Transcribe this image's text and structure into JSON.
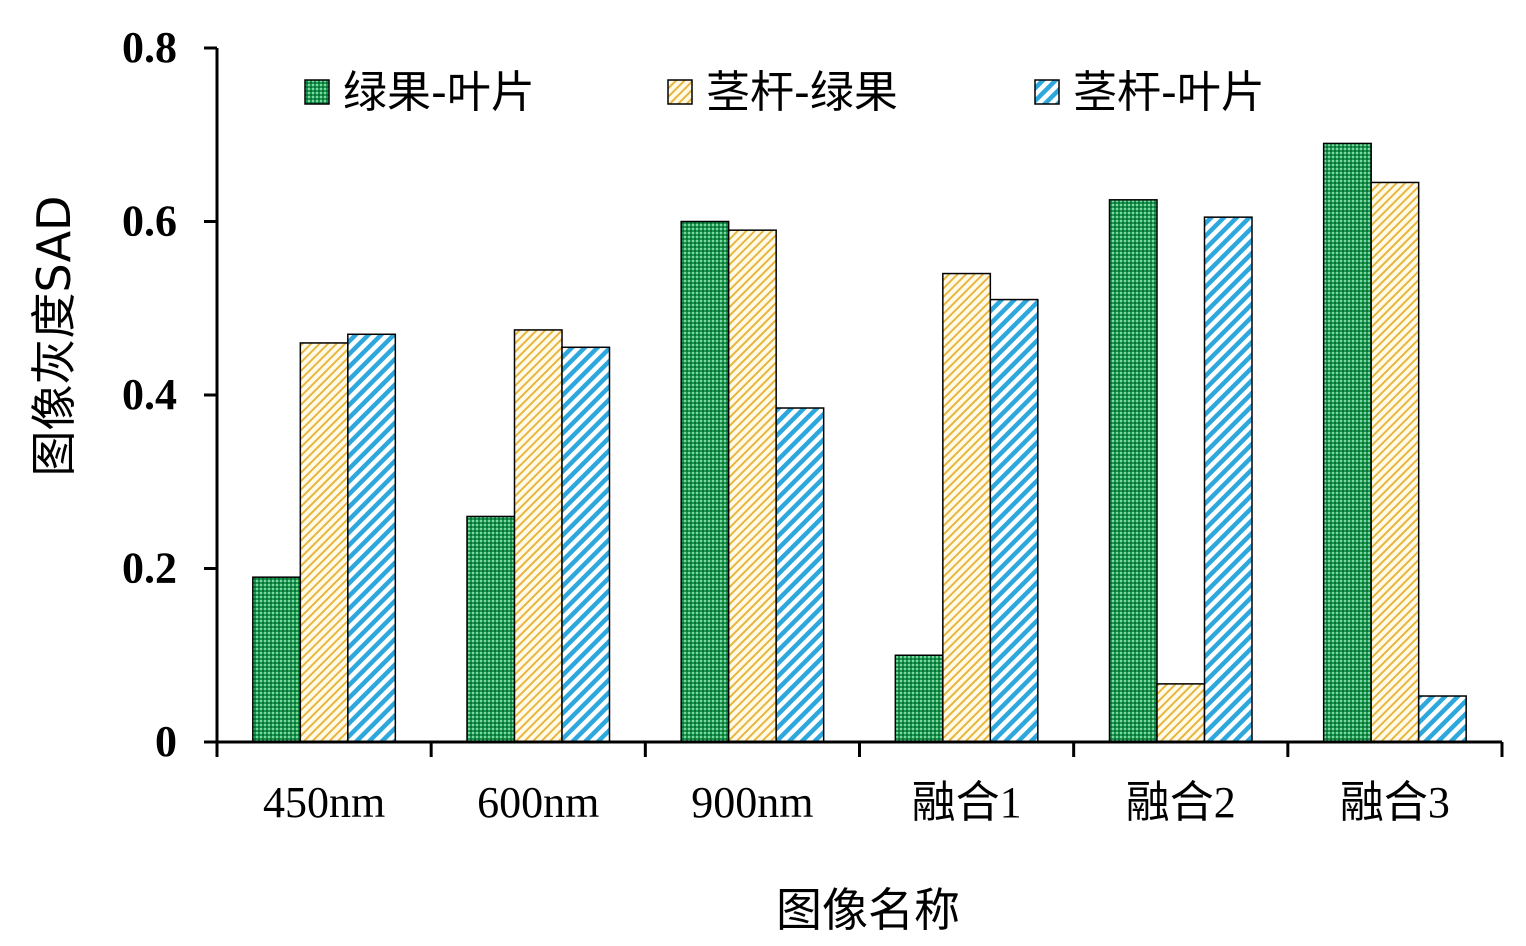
{
  "chart_data": {
    "type": "bar",
    "title": "",
    "xlabel": "图像名称",
    "ylabel": "图像灰度SAD",
    "ylim": [
      0,
      0.8
    ],
    "yticks": [
      "0",
      "0.2",
      "0.4",
      "0.6",
      "0.8"
    ],
    "grid": false,
    "legend_position": "top",
    "categories": [
      "450nm",
      "600nm",
      "900nm",
      "融合1",
      "融合2",
      "融合3"
    ],
    "series": [
      {
        "name": "绿果-叶片",
        "values": [
          0.19,
          0.26,
          0.6,
          0.1,
          0.625,
          0.69
        ],
        "color": "#1a9a50",
        "pattern": "dots"
      },
      {
        "name": "茎杆-绿果",
        "values": [
          0.46,
          0.475,
          0.59,
          0.54,
          0.067,
          0.645
        ],
        "color": "#e8b640",
        "pattern": "hatch-light"
      },
      {
        "name": "茎杆-叶片",
        "values": [
          0.47,
          0.455,
          0.385,
          0.51,
          0.605,
          0.053
        ],
        "color": "#2ea8dc",
        "pattern": "hatch-bold"
      }
    ]
  }
}
